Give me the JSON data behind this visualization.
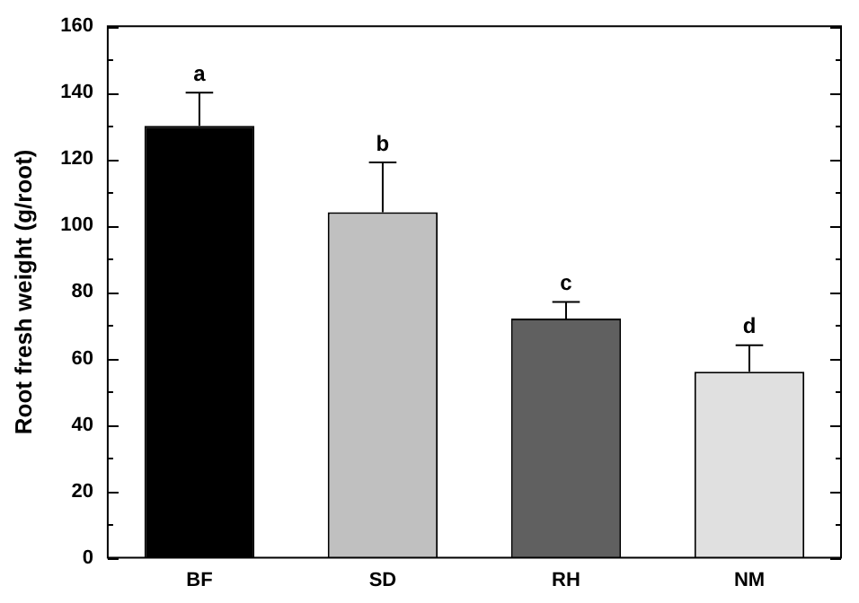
{
  "chart_data": {
    "type": "bar",
    "ylabel": "Root fresh weight (g/root)",
    "categories": [
      "BF",
      "SD",
      "RH",
      "NM"
    ],
    "values": [
      130,
      104,
      72,
      56
    ],
    "colors": [
      "#000000",
      "#c0c0c0",
      "#606060",
      "#e0e0e0"
    ],
    "errors": [
      [
        130,
        140
      ],
      [
        104,
        119
      ],
      [
        72,
        77
      ],
      [
        56,
        64
      ]
    ],
    "ylim": [
      0,
      160
    ],
    "yticks": [
      0,
      {
        "value": 10,
        "label": null
      },
      20,
      {
        "value": 30,
        "label": null
      },
      40,
      {
        "value": 50,
        "label": null
      },
      60,
      {
        "value": 70,
        "label": null
      },
      80,
      {
        "value": 90,
        "label": null
      },
      100,
      {
        "value": 110,
        "label": null
      },
      120,
      {
        "value": 130,
        "label": null
      },
      140,
      {
        "value": 150,
        "label": null
      },
      160
    ],
    "annotations": [
      {
        "text": "a",
        "x": "BF",
        "y": 140
      },
      {
        "text": "b",
        "x": "SD",
        "y": 119
      },
      {
        "text": "c",
        "x": "RH",
        "y": 77
      },
      {
        "text": "d",
        "x": "NM",
        "y": 64
      }
    ],
    "grid": false,
    "legend": false
  }
}
